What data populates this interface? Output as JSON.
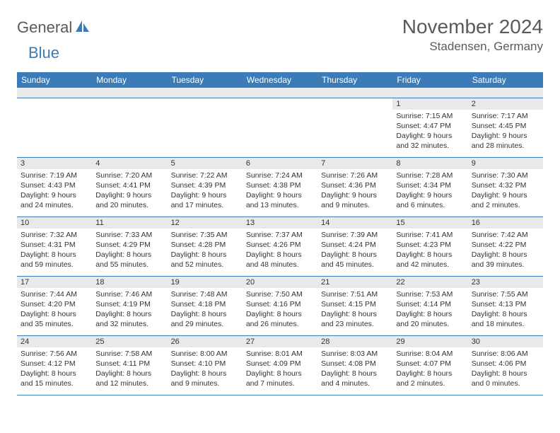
{
  "logo": {
    "word1": "General",
    "word2": "Blue",
    "icon_color": "#3b7cb8"
  },
  "title": "November 2024",
  "location": "Stadensen, Germany",
  "colors": {
    "header_bar": "#3b7cb8",
    "header_text": "#ffffff",
    "daynum_bg": "#e8e9ea",
    "row_border": "#3b7cb8",
    "body_text": "#333333",
    "title_text": "#5a5a5a"
  },
  "dow": [
    "Sunday",
    "Monday",
    "Tuesday",
    "Wednesday",
    "Thursday",
    "Friday",
    "Saturday"
  ],
  "weeks": [
    [
      {
        "n": "",
        "sr": "",
        "ss": "",
        "dl": ""
      },
      {
        "n": "",
        "sr": "",
        "ss": "",
        "dl": ""
      },
      {
        "n": "",
        "sr": "",
        "ss": "",
        "dl": ""
      },
      {
        "n": "",
        "sr": "",
        "ss": "",
        "dl": ""
      },
      {
        "n": "",
        "sr": "",
        "ss": "",
        "dl": ""
      },
      {
        "n": "1",
        "sr": "Sunrise: 7:15 AM",
        "ss": "Sunset: 4:47 PM",
        "dl": "Daylight: 9 hours and 32 minutes."
      },
      {
        "n": "2",
        "sr": "Sunrise: 7:17 AM",
        "ss": "Sunset: 4:45 PM",
        "dl": "Daylight: 9 hours and 28 minutes."
      }
    ],
    [
      {
        "n": "3",
        "sr": "Sunrise: 7:19 AM",
        "ss": "Sunset: 4:43 PM",
        "dl": "Daylight: 9 hours and 24 minutes."
      },
      {
        "n": "4",
        "sr": "Sunrise: 7:20 AM",
        "ss": "Sunset: 4:41 PM",
        "dl": "Daylight: 9 hours and 20 minutes."
      },
      {
        "n": "5",
        "sr": "Sunrise: 7:22 AM",
        "ss": "Sunset: 4:39 PM",
        "dl": "Daylight: 9 hours and 17 minutes."
      },
      {
        "n": "6",
        "sr": "Sunrise: 7:24 AM",
        "ss": "Sunset: 4:38 PM",
        "dl": "Daylight: 9 hours and 13 minutes."
      },
      {
        "n": "7",
        "sr": "Sunrise: 7:26 AM",
        "ss": "Sunset: 4:36 PM",
        "dl": "Daylight: 9 hours and 9 minutes."
      },
      {
        "n": "8",
        "sr": "Sunrise: 7:28 AM",
        "ss": "Sunset: 4:34 PM",
        "dl": "Daylight: 9 hours and 6 minutes."
      },
      {
        "n": "9",
        "sr": "Sunrise: 7:30 AM",
        "ss": "Sunset: 4:32 PM",
        "dl": "Daylight: 9 hours and 2 minutes."
      }
    ],
    [
      {
        "n": "10",
        "sr": "Sunrise: 7:32 AM",
        "ss": "Sunset: 4:31 PM",
        "dl": "Daylight: 8 hours and 59 minutes."
      },
      {
        "n": "11",
        "sr": "Sunrise: 7:33 AM",
        "ss": "Sunset: 4:29 PM",
        "dl": "Daylight: 8 hours and 55 minutes."
      },
      {
        "n": "12",
        "sr": "Sunrise: 7:35 AM",
        "ss": "Sunset: 4:28 PM",
        "dl": "Daylight: 8 hours and 52 minutes."
      },
      {
        "n": "13",
        "sr": "Sunrise: 7:37 AM",
        "ss": "Sunset: 4:26 PM",
        "dl": "Daylight: 8 hours and 48 minutes."
      },
      {
        "n": "14",
        "sr": "Sunrise: 7:39 AM",
        "ss": "Sunset: 4:24 PM",
        "dl": "Daylight: 8 hours and 45 minutes."
      },
      {
        "n": "15",
        "sr": "Sunrise: 7:41 AM",
        "ss": "Sunset: 4:23 PM",
        "dl": "Daylight: 8 hours and 42 minutes."
      },
      {
        "n": "16",
        "sr": "Sunrise: 7:42 AM",
        "ss": "Sunset: 4:22 PM",
        "dl": "Daylight: 8 hours and 39 minutes."
      }
    ],
    [
      {
        "n": "17",
        "sr": "Sunrise: 7:44 AM",
        "ss": "Sunset: 4:20 PM",
        "dl": "Daylight: 8 hours and 35 minutes."
      },
      {
        "n": "18",
        "sr": "Sunrise: 7:46 AM",
        "ss": "Sunset: 4:19 PM",
        "dl": "Daylight: 8 hours and 32 minutes."
      },
      {
        "n": "19",
        "sr": "Sunrise: 7:48 AM",
        "ss": "Sunset: 4:18 PM",
        "dl": "Daylight: 8 hours and 29 minutes."
      },
      {
        "n": "20",
        "sr": "Sunrise: 7:50 AM",
        "ss": "Sunset: 4:16 PM",
        "dl": "Daylight: 8 hours and 26 minutes."
      },
      {
        "n": "21",
        "sr": "Sunrise: 7:51 AM",
        "ss": "Sunset: 4:15 PM",
        "dl": "Daylight: 8 hours and 23 minutes."
      },
      {
        "n": "22",
        "sr": "Sunrise: 7:53 AM",
        "ss": "Sunset: 4:14 PM",
        "dl": "Daylight: 8 hours and 20 minutes."
      },
      {
        "n": "23",
        "sr": "Sunrise: 7:55 AM",
        "ss": "Sunset: 4:13 PM",
        "dl": "Daylight: 8 hours and 18 minutes."
      }
    ],
    [
      {
        "n": "24",
        "sr": "Sunrise: 7:56 AM",
        "ss": "Sunset: 4:12 PM",
        "dl": "Daylight: 8 hours and 15 minutes."
      },
      {
        "n": "25",
        "sr": "Sunrise: 7:58 AM",
        "ss": "Sunset: 4:11 PM",
        "dl": "Daylight: 8 hours and 12 minutes."
      },
      {
        "n": "26",
        "sr": "Sunrise: 8:00 AM",
        "ss": "Sunset: 4:10 PM",
        "dl": "Daylight: 8 hours and 9 minutes."
      },
      {
        "n": "27",
        "sr": "Sunrise: 8:01 AM",
        "ss": "Sunset: 4:09 PM",
        "dl": "Daylight: 8 hours and 7 minutes."
      },
      {
        "n": "28",
        "sr": "Sunrise: 8:03 AM",
        "ss": "Sunset: 4:08 PM",
        "dl": "Daylight: 8 hours and 4 minutes."
      },
      {
        "n": "29",
        "sr": "Sunrise: 8:04 AM",
        "ss": "Sunset: 4:07 PM",
        "dl": "Daylight: 8 hours and 2 minutes."
      },
      {
        "n": "30",
        "sr": "Sunrise: 8:06 AM",
        "ss": "Sunset: 4:06 PM",
        "dl": "Daylight: 8 hours and 0 minutes."
      }
    ]
  ]
}
